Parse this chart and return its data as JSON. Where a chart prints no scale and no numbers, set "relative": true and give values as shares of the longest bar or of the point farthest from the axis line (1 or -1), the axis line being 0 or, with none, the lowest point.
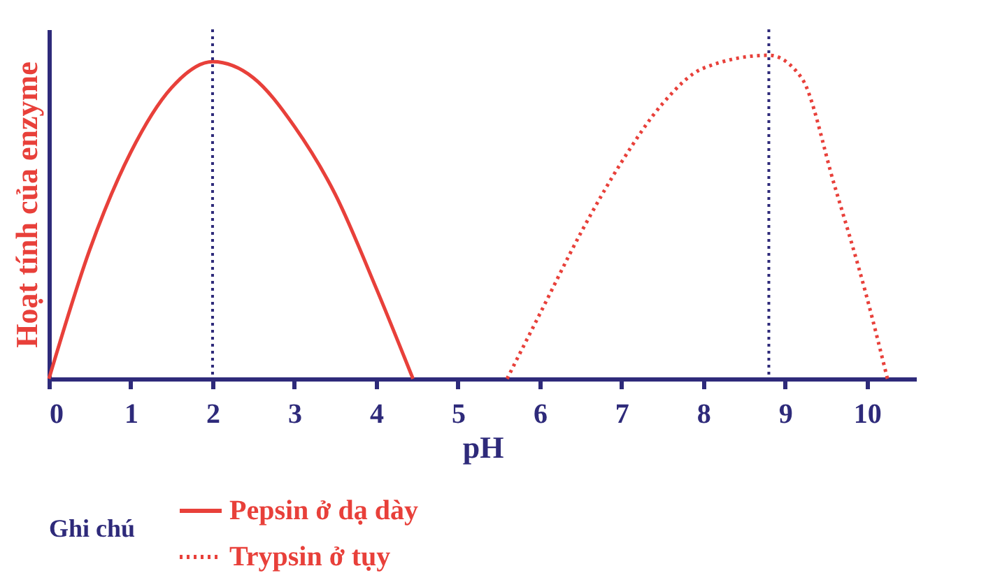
{
  "chart_data": {
    "type": "line",
    "relative": true,
    "xlabel": "pH",
    "ylabel": "Hoạt tính của enzyme",
    "legend_title": "Ghi chú",
    "legend": "bottom",
    "xlim": [
      0,
      10.6
    ],
    "xticks": [
      0,
      1,
      2,
      3,
      4,
      5,
      6,
      7,
      8,
      9,
      10
    ],
    "grid": false,
    "series": [
      {
        "name": "Pepsin ở dạ dày",
        "color": "#e8403a",
        "line_style": "solid",
        "x": [
          0,
          0.5,
          1,
          1.5,
          2,
          2.5,
          3,
          3.5,
          4,
          4.45
        ],
        "values": [
          0,
          0.4,
          0.7,
          0.9,
          0.98,
          0.93,
          0.78,
          0.57,
          0.28,
          0
        ]
      },
      {
        "name": "Trypsin ở tụy",
        "color": "#e8403a",
        "line_style": "dotted",
        "x": [
          5.6,
          6,
          6.5,
          7,
          7.5,
          8,
          8.8,
          9.2,
          9.6,
          10,
          10.25
        ],
        "values": [
          0,
          0.2,
          0.45,
          0.67,
          0.85,
          0.96,
          1,
          0.93,
          0.6,
          0.25,
          0
        ]
      }
    ],
    "ref_lines": [
      {
        "axis": "x",
        "value": 2,
        "color": "#2e2a7a",
        "line_style": "dotted"
      },
      {
        "axis": "x",
        "value": 8.8,
        "color": "#2e2a7a",
        "line_style": "dotted"
      }
    ]
  }
}
